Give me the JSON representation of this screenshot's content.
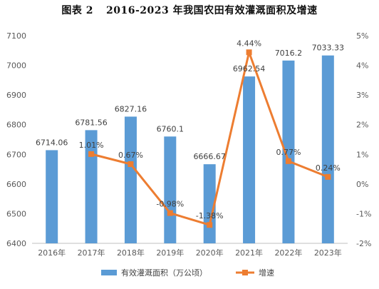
{
  "figure_label": "图表 2",
  "chart_title": "2016-2023 年我国农田有效灌溉面积及增速",
  "chart_data": {
    "type": "bar",
    "categories": [
      "2016年",
      "2017年",
      "2018年",
      "2019年",
      "2020年",
      "2021年",
      "2022年",
      "2023年"
    ],
    "series": [
      {
        "name": "有效灌溉面积（万公顷）",
        "type": "bar",
        "axis": "left",
        "color": "#5b9bd5",
        "values": [
          6714.06,
          6781.56,
          6827.16,
          6760.1,
          6666.67,
          6962.54,
          7016.2,
          7033.33
        ],
        "labels": [
          "6714.06",
          "6781.56",
          "6827.16",
          "6760.1",
          "6666.67",
          "6962.54",
          "7016.2",
          "7033.33"
        ]
      },
      {
        "name": "增速",
        "type": "line",
        "axis": "right",
        "color": "#ed7d31",
        "values": [
          null,
          1.01,
          0.67,
          -0.98,
          -1.38,
          4.44,
          0.77,
          0.24
        ],
        "labels": [
          "",
          "1.01%",
          "0.67%",
          "-0.98%",
          "-1.38%",
          "4.44%",
          "0.77%",
          "0.24%"
        ]
      }
    ],
    "y_left": {
      "min": 6400,
      "max": 7100,
      "step": 100
    },
    "y_right": {
      "min": -2,
      "max": 5,
      "step": 1,
      "suffix": "%"
    },
    "legend_position": "bottom",
    "grid": false
  }
}
